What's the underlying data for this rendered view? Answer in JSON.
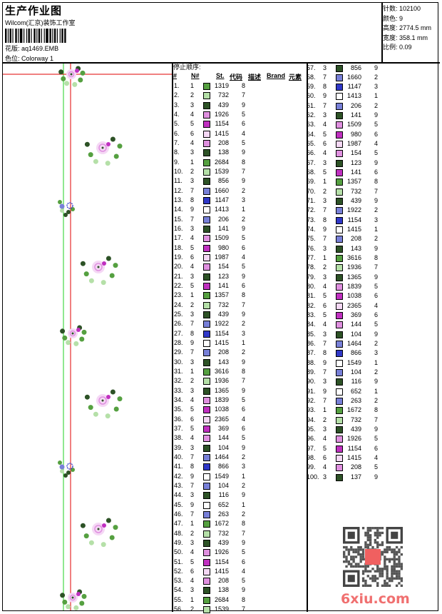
{
  "header": {
    "title": "生产作业图",
    "studio": "Wilcom(汇京)装饰工作室",
    "design_label": "花版:",
    "design_value": "aq1469.EMB",
    "colorway_label": "色位:",
    "colorway_value": "Colorway 1"
  },
  "info": [
    {
      "label": "针数:",
      "value": "102100"
    },
    {
      "label": "颜色:",
      "value": "9"
    },
    {
      "label": "高度:",
      "value": "2774.5 mm"
    },
    {
      "label": "宽度:",
      "value": "358.1 mm"
    },
    {
      "label": "比例:",
      "value": "0.09"
    }
  ],
  "table": {
    "title": "停止顺序:",
    "headers": [
      "#",
      "N#",
      "St.",
      "代码",
      "描述",
      "Brand",
      "元素"
    ],
    "palette": {
      "1": "#55a040",
      "2": "#b5e0a8",
      "3": "#2d5226",
      "4": "#e090e0",
      "5": "#c030c0",
      "6": "#f5d8f5",
      "7": "#7880d8",
      "8": "#3038c8",
      "9": "#ffffff"
    },
    "rows": [
      [
        "1.",
        1,
        "1319",
        "8"
      ],
      [
        "2.",
        2,
        "732",
        "7"
      ],
      [
        "3.",
        3,
        "439",
        "9"
      ],
      [
        "4.",
        4,
        "1926",
        "5"
      ],
      [
        "5.",
        5,
        "1154",
        "6"
      ],
      [
        "6.",
        6,
        "1415",
        "4"
      ],
      [
        "7.",
        4,
        "208",
        "5"
      ],
      [
        "8.",
        3,
        "138",
        "9"
      ],
      [
        "9.",
        1,
        "2684",
        "8"
      ],
      [
        "10.",
        2,
        "1539",
        "7"
      ],
      [
        "11.",
        3,
        "856",
        "9"
      ],
      [
        "12.",
        7,
        "1660",
        "2"
      ],
      [
        "13.",
        8,
        "1147",
        "3"
      ],
      [
        "14.",
        9,
        "1413",
        "1"
      ],
      [
        "15.",
        7,
        "206",
        "2"
      ],
      [
        "16.",
        3,
        "141",
        "9"
      ],
      [
        "17.",
        4,
        "1509",
        "5"
      ],
      [
        "18.",
        5,
        "980",
        "6"
      ],
      [
        "19.",
        6,
        "1987",
        "4"
      ],
      [
        "20.",
        4,
        "154",
        "5"
      ],
      [
        "21.",
        3,
        "123",
        "9"
      ],
      [
        "22.",
        5,
        "141",
        "6"
      ],
      [
        "23.",
        1,
        "1357",
        "8"
      ],
      [
        "24.",
        2,
        "732",
        "7"
      ],
      [
        "25.",
        3,
        "439",
        "9"
      ],
      [
        "26.",
        7,
        "1922",
        "2"
      ],
      [
        "27.",
        8,
        "1154",
        "3"
      ],
      [
        "28.",
        9,
        "1415",
        "1"
      ],
      [
        "29.",
        7,
        "208",
        "2"
      ],
      [
        "30.",
        3,
        "143",
        "9"
      ],
      [
        "31.",
        1,
        "3616",
        "8"
      ],
      [
        "32.",
        2,
        "1936",
        "7"
      ],
      [
        "33.",
        3,
        "1365",
        "9"
      ],
      [
        "34.",
        4,
        "1839",
        "5"
      ],
      [
        "35.",
        5,
        "1038",
        "6"
      ],
      [
        "36.",
        6,
        "2365",
        "4"
      ],
      [
        "37.",
        5,
        "369",
        "6"
      ],
      [
        "38.",
        4,
        "144",
        "5"
      ],
      [
        "39.",
        3,
        "104",
        "9"
      ],
      [
        "40.",
        7,
        "1464",
        "2"
      ],
      [
        "41.",
        8,
        "866",
        "3"
      ],
      [
        "42.",
        9,
        "1549",
        "1"
      ],
      [
        "43.",
        7,
        "104",
        "2"
      ],
      [
        "44.",
        3,
        "116",
        "9"
      ],
      [
        "45.",
        9,
        "652",
        "1"
      ],
      [
        "46.",
        7,
        "263",
        "2"
      ],
      [
        "47.",
        1,
        "1672",
        "8"
      ],
      [
        "48.",
        2,
        "732",
        "7"
      ],
      [
        "49.",
        3,
        "439",
        "9"
      ],
      [
        "50.",
        4,
        "1926",
        "5"
      ],
      [
        "51.",
        5,
        "1154",
        "6"
      ],
      [
        "52.",
        6,
        "1415",
        "4"
      ],
      [
        "53.",
        4,
        "208",
        "5"
      ],
      [
        "54.",
        3,
        "138",
        "9"
      ],
      [
        "55.",
        1,
        "2684",
        "8"
      ],
      [
        "56.",
        2,
        "1539",
        "7"
      ],
      [
        "57.",
        3,
        "856",
        "9"
      ],
      [
        "58.",
        7,
        "1660",
        "2"
      ],
      [
        "59.",
        8,
        "1147",
        "3"
      ],
      [
        "60.",
        9,
        "1413",
        "1"
      ],
      [
        "61.",
        7,
        "206",
        "2"
      ],
      [
        "62.",
        3,
        "141",
        "9"
      ],
      [
        "63.",
        4,
        "1509",
        "5"
      ],
      [
        "64.",
        5,
        "980",
        "6"
      ],
      [
        "65.",
        6,
        "1987",
        "4"
      ],
      [
        "66.",
        4,
        "154",
        "5"
      ],
      [
        "67.",
        3,
        "123",
        "9"
      ],
      [
        "68.",
        5,
        "141",
        "6"
      ],
      [
        "69.",
        1,
        "1357",
        "8"
      ],
      [
        "70.",
        2,
        "732",
        "7"
      ],
      [
        "71.",
        3,
        "439",
        "9"
      ],
      [
        "72.",
        7,
        "1922",
        "2"
      ],
      [
        "73.",
        8,
        "1154",
        "3"
      ],
      [
        "74.",
        9,
        "1415",
        "1"
      ],
      [
        "75.",
        7,
        "208",
        "2"
      ],
      [
        "76.",
        3,
        "143",
        "9"
      ],
      [
        "77.",
        1,
        "3616",
        "8"
      ],
      [
        "78.",
        2,
        "1936",
        "7"
      ],
      [
        "79.",
        3,
        "1365",
        "9"
      ],
      [
        "80.",
        4,
        "1839",
        "5"
      ],
      [
        "81.",
        5,
        "1038",
        "6"
      ],
      [
        "82.",
        6,
        "2365",
        "4"
      ],
      [
        "83.",
        5,
        "369",
        "6"
      ],
      [
        "84.",
        4,
        "144",
        "5"
      ],
      [
        "85.",
        3,
        "104",
        "9"
      ],
      [
        "86.",
        7,
        "1464",
        "2"
      ],
      [
        "87.",
        8,
        "866",
        "3"
      ],
      [
        "88.",
        9,
        "1549",
        "1"
      ],
      [
        "89.",
        7,
        "104",
        "2"
      ],
      [
        "90.",
        3,
        "116",
        "9"
      ],
      [
        "91.",
        9,
        "652",
        "1"
      ],
      [
        "92.",
        7,
        "263",
        "2"
      ],
      [
        "93.",
        1,
        "1672",
        "8"
      ],
      [
        "94.",
        2,
        "732",
        "7"
      ],
      [
        "95.",
        3,
        "439",
        "9"
      ],
      [
        "96.",
        4,
        "1926",
        "5"
      ],
      [
        "97.",
        5,
        "1154",
        "6"
      ],
      [
        "98.",
        6,
        "1415",
        "4"
      ],
      [
        "99.",
        4,
        "208",
        "5"
      ],
      [
        "100.",
        3,
        "137",
        "9"
      ]
    ]
  },
  "watermark": {
    "seal_text": "以图版",
    "site": "6xiu.com"
  }
}
